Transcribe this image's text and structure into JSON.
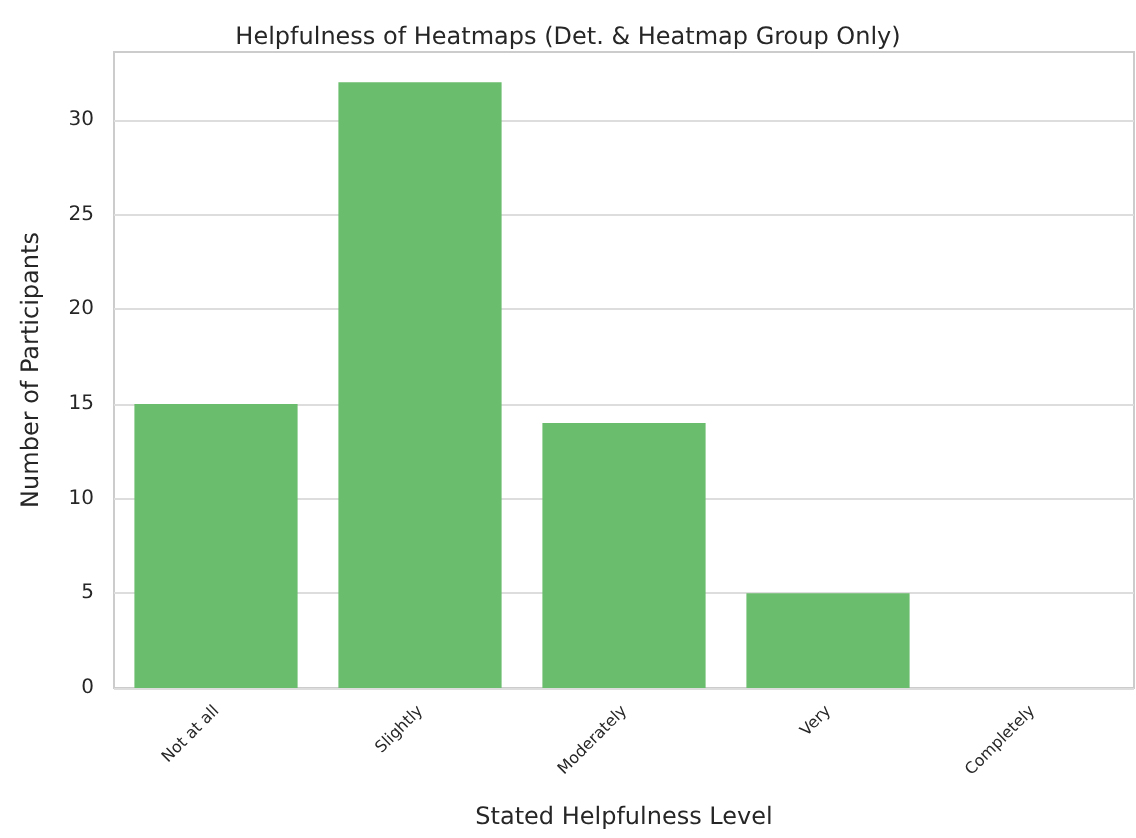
{
  "chart_data": {
    "type": "bar",
    "title": "Helpfulness of Heatmaps (Det. & Heatmap Group Only)",
    "xlabel": "Stated Helpfulness Level",
    "ylabel": "Number of Participants",
    "categories": [
      "Not at all",
      "Slightly",
      "Moderately",
      "Very",
      "Completely"
    ],
    "values": [
      15,
      32,
      14,
      5,
      0
    ],
    "color": "#6abd6d",
    "ylim": [
      0,
      33.6
    ],
    "yticks": [
      0,
      5,
      10,
      15,
      20,
      25,
      30
    ],
    "grid": "y"
  }
}
